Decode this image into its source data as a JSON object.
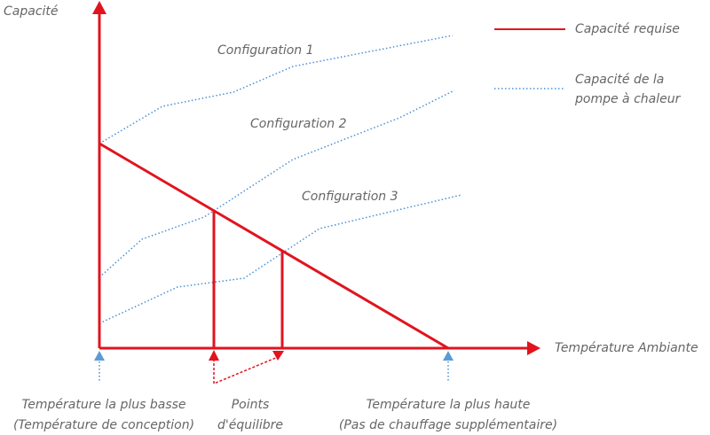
{
  "axes": {
    "y_label": "Capacité",
    "x_label": "Température Ambiante"
  },
  "legend": {
    "items": [
      {
        "label": [
          "Capacité requise"
        ]
      },
      {
        "label": [
          "Capacité de la",
          "pompe à chaleur"
        ]
      }
    ]
  },
  "curves": [
    {
      "label": "Configuration 1"
    },
    {
      "label": "Configuration 2"
    },
    {
      "label": "Configuration 3"
    }
  ],
  "markers": [
    {
      "label": [
        "Température la plus basse",
        "(Température de conception)"
      ]
    },
    {
      "label": [
        "Points",
        "d'équilibre"
      ]
    },
    {
      "label": [
        "Température la plus haute",
        "(Pas de chauffage supplémentaire)"
      ]
    }
  ]
}
